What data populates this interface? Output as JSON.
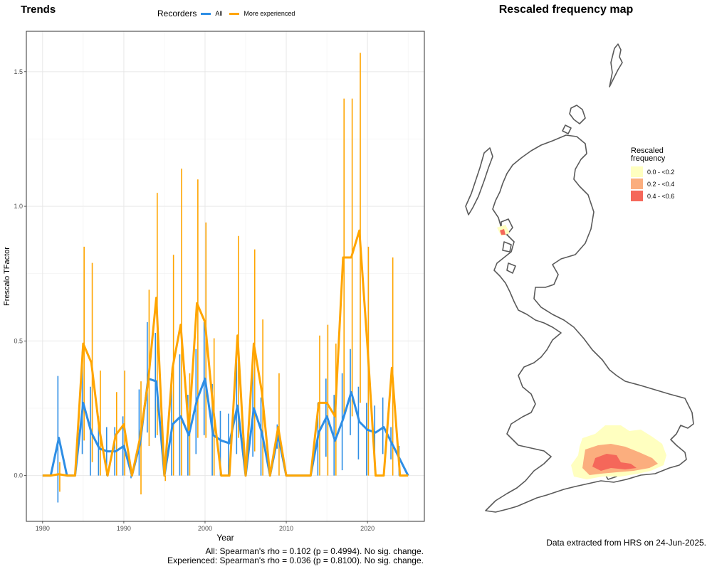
{
  "trends_panel": {
    "title": "Trends",
    "legend_title": "Recorders",
    "stats_all": "All: Spearman's rho = 0.102 (p = 0.4994). No sig. change.",
    "stats_experienced": "Experienced: Spearman's rho = 0.036 (p = 0.8100). No sig. change."
  },
  "map_panel": {
    "title": "Rescaled frequency map",
    "legend_title_1": "Rescaled",
    "legend_title_2": "frequency",
    "legend_items": [
      {
        "label": "0.0 - <0.2",
        "color": "#FFFFC0"
      },
      {
        "label": "0.2 - <0.4",
        "color": "#FBAE7E"
      },
      {
        "label": "0.4 - <0.6",
        "color": "#F5675A"
      }
    ],
    "source_note": "Data extracted from HRS on 24-Jun-2025."
  },
  "chart_data": {
    "type": "line",
    "xlabel": "Year",
    "ylabel": "Frescalo TFactor",
    "xlim": [
      1978,
      2027
    ],
    "ylim": [
      -0.17,
      1.65
    ],
    "xticks": [
      1980,
      1990,
      2000,
      2010,
      2020
    ],
    "yticks": [
      0.0,
      0.5,
      1.0,
      1.5
    ],
    "ytick_labels": [
      "0.0",
      "0.5",
      "1.0",
      "1.5"
    ],
    "grid": true,
    "legend_position": "top",
    "series": [
      {
        "name": "All",
        "color": "#2E8EE5",
        "x": [
          1980,
          1981,
          1982,
          1983,
          1984,
          1985,
          1986,
          1987,
          1988,
          1989,
          1990,
          1991,
          1992,
          1993,
          1994,
          1995,
          1996,
          1997,
          1998,
          1999,
          2000,
          2001,
          2002,
          2003,
          2004,
          2005,
          2006,
          2007,
          2008,
          2009,
          2010,
          2011,
          2012,
          2013,
          2014,
          2015,
          2016,
          2017,
          2018,
          2019,
          2020,
          2021,
          2022,
          2023,
          2024,
          2025
        ],
        "y": [
          0,
          0,
          0.14,
          0,
          0,
          0.27,
          0.16,
          0.1,
          0.09,
          0.09,
          0.11,
          0,
          0.12,
          0.36,
          0.35,
          0,
          0.19,
          0.22,
          0.15,
          0.28,
          0.36,
          0.15,
          0.13,
          0.12,
          0.26,
          0,
          0.25,
          0.16,
          0,
          0.15,
          0,
          0,
          0,
          0,
          0.16,
          0.22,
          0.13,
          0.21,
          0.31,
          0.2,
          0.17,
          0.16,
          0.18,
          0.12,
          0.06,
          0
        ],
        "err_low": [
          0,
          0,
          -0.1,
          0,
          0,
          0.08,
          0,
          0,
          0,
          0,
          0,
          -0.01,
          0,
          0.16,
          0.14,
          0,
          0,
          0,
          0,
          0.08,
          0.15,
          0,
          0,
          0,
          0.08,
          0,
          0.07,
          0,
          0,
          0.1,
          0,
          0,
          0,
          0,
          0,
          0.07,
          0,
          0.02,
          0.15,
          0.06,
          0,
          0.02,
          0.08,
          0.06,
          0,
          0
        ],
        "err_high": [
          0,
          0,
          0.37,
          0,
          0,
          0.46,
          0.33,
          0.22,
          0.18,
          0.18,
          0.22,
          0,
          0.32,
          0.57,
          0.53,
          0,
          0.38,
          0.45,
          0.3,
          0.47,
          0.57,
          0.34,
          0.24,
          0.23,
          0.45,
          0,
          0.42,
          0.29,
          0,
          0.19,
          0,
          0,
          0,
          0,
          0.27,
          0.36,
          0.3,
          0.38,
          0.47,
          0.33,
          0.27,
          0.26,
          0.29,
          0.18,
          0.11,
          0
        ]
      },
      {
        "name": "More experienced",
        "color": "#FFA500",
        "x": [
          1980,
          1981,
          1982,
          1983,
          1984,
          1985,
          1986,
          1987,
          1988,
          1989,
          1990,
          1991,
          1992,
          1993,
          1994,
          1995,
          1996,
          1997,
          1998,
          1999,
          2000,
          2001,
          2002,
          2003,
          2004,
          2005,
          2006,
          2007,
          2008,
          2009,
          2010,
          2011,
          2012,
          2013,
          2014,
          2015,
          2016,
          2017,
          2018,
          2019,
          2020,
          2021,
          2022,
          2023,
          2024,
          2025
        ],
        "y": [
          0,
          0,
          0.005,
          0,
          0,
          0.49,
          0.42,
          0.17,
          0,
          0.15,
          0.19,
          0,
          0.14,
          0.35,
          0.66,
          0,
          0.4,
          0.56,
          0.17,
          0.64,
          0.57,
          0.25,
          0,
          0,
          0.52,
          0,
          0.49,
          0.31,
          0,
          0.18,
          0,
          0,
          0,
          0,
          0.27,
          0.27,
          0.22,
          0.81,
          0.81,
          0.91,
          0.48,
          0,
          0,
          0.4,
          0,
          0
        ],
        "err_low": [
          0,
          0,
          -0.06,
          0,
          0,
          0.13,
          0.05,
          0,
          0,
          0,
          0,
          0,
          -0.07,
          0.11,
          0.15,
          -0.02,
          0,
          0,
          0,
          0.14,
          0.14,
          0,
          0,
          0,
          0.14,
          0,
          0.09,
          0,
          0,
          0,
          0,
          0,
          0,
          0,
          0,
          0,
          0,
          0.22,
          0.22,
          0.27,
          0,
          0,
          0,
          0,
          0,
          0
        ],
        "err_high": [
          0,
          0,
          0.05,
          0,
          0,
          0.85,
          0.79,
          0.39,
          0,
          0.31,
          0.39,
          0,
          0.35,
          0.69,
          1.05,
          0,
          0.82,
          1.14,
          0.38,
          1.1,
          0.94,
          0.51,
          0,
          0,
          0.89,
          0,
          0.84,
          0.58,
          0,
          0.38,
          0,
          0,
          0,
          0,
          0.52,
          0.56,
          0.49,
          1.4,
          1.4,
          1.57,
          0.85,
          0,
          0,
          0.81,
          0,
          0
        ]
      }
    ]
  }
}
